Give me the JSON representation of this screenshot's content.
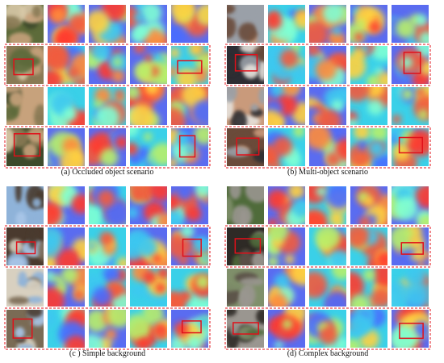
{
  "panels": [
    {
      "caption": "(a) Occluded object scenario"
    },
    {
      "caption": "(b) Multi-object scenario"
    },
    {
      "caption": "(c ) Simple background"
    },
    {
      "caption": "(d) Complex background"
    }
  ]
}
